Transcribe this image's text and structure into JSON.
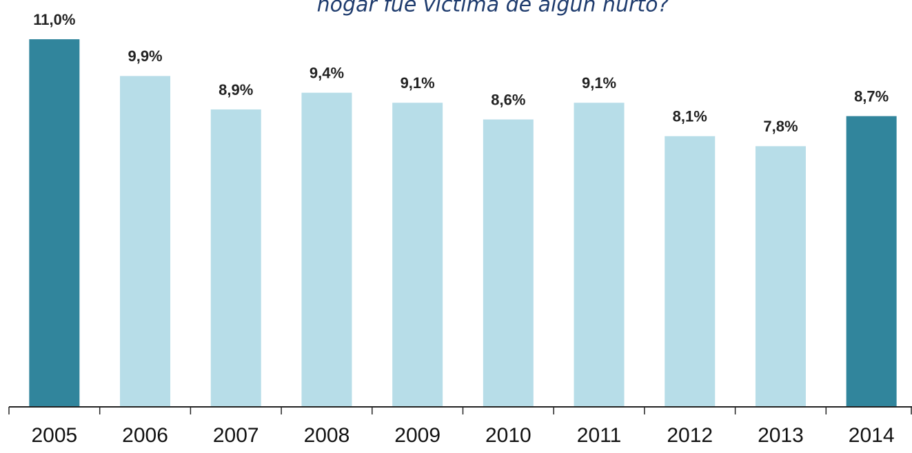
{
  "chart_data": {
    "type": "bar",
    "title": "hogar fue víctima de algún hurto?",
    "categories": [
      "2005",
      "2006",
      "2007",
      "2008",
      "2009",
      "2010",
      "2011",
      "2012",
      "2013",
      "2014"
    ],
    "values": [
      11.0,
      9.9,
      8.9,
      9.4,
      9.1,
      8.6,
      9.1,
      8.1,
      7.8,
      8.7
    ],
    "value_labels": [
      "11,0%",
      "9,9%",
      "8,9%",
      "9,4%",
      "9,1%",
      "8,6%",
      "9,1%",
      "8,1%",
      "7,8%",
      "8,7%"
    ],
    "colors": [
      "#31859c",
      "#b7dde8",
      "#b7dde8",
      "#b7dde8",
      "#b7dde8",
      "#b7dde8",
      "#b7dde8",
      "#b7dde8",
      "#b7dde8",
      "#31859c"
    ],
    "ylim": [
      0,
      11
    ]
  }
}
